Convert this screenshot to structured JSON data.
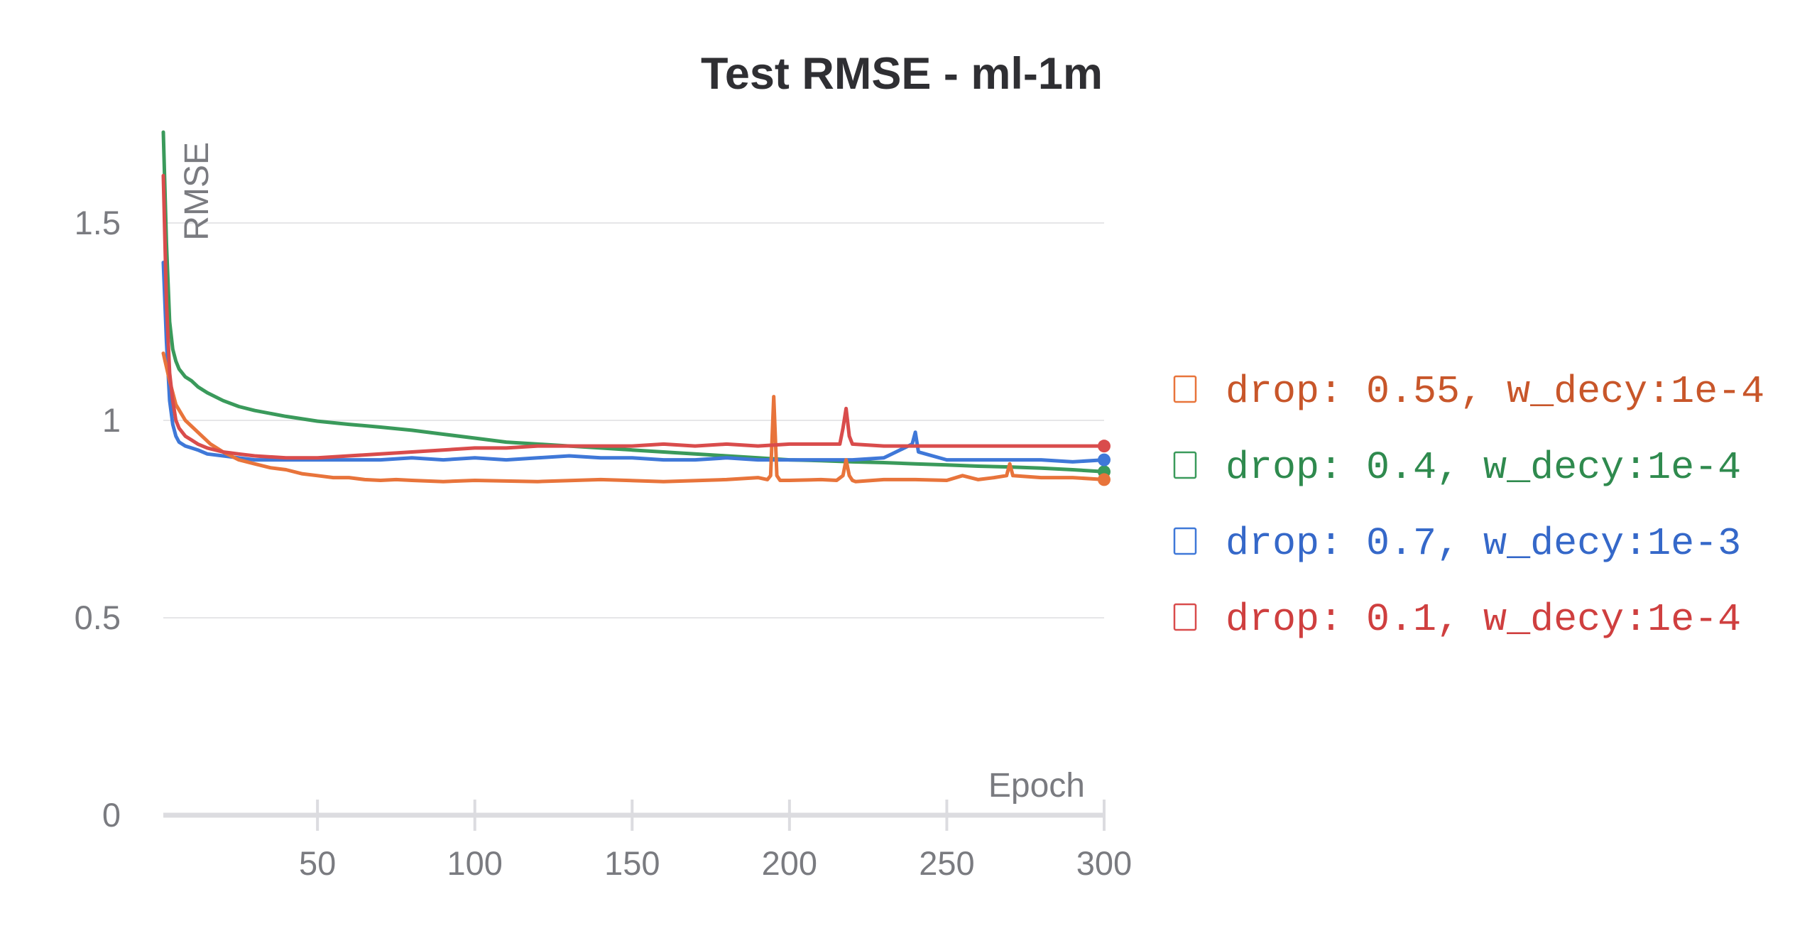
{
  "chart_data": {
    "type": "line",
    "title": "Test RMSE - ml-1m",
    "xlabel": "Epoch",
    "ylabel": "RMSE",
    "xlim": [
      1,
      300
    ],
    "ylim": [
      0,
      1.75
    ],
    "xticks": [
      50,
      100,
      150,
      200,
      250,
      300
    ],
    "yticks": [
      0,
      0.5,
      1,
      1.5
    ],
    "ytick_labels": [
      "0",
      "0.5",
      "1",
      "1.5"
    ],
    "grid": true,
    "legend": "right",
    "series": [
      {
        "name": "drop: 0.55, w_decy:1e-4",
        "color": "#e8743b",
        "text_color": "#c8562a",
        "x": [
          1,
          3,
          5,
          8,
          12,
          16,
          20,
          25,
          30,
          35,
          40,
          45,
          50,
          55,
          60,
          65,
          70,
          75,
          80,
          90,
          100,
          120,
          140,
          160,
          180,
          190,
          193,
          194,
          195,
          196,
          197,
          200,
          210,
          215,
          217,
          218,
          219,
          220,
          221,
          230,
          240,
          250,
          255,
          260,
          265,
          269,
          270,
          271,
          280,
          290,
          300
        ],
        "values": [
          1.17,
          1.1,
          1.04,
          1.0,
          0.97,
          0.94,
          0.92,
          0.9,
          0.89,
          0.88,
          0.875,
          0.865,
          0.86,
          0.855,
          0.855,
          0.85,
          0.848,
          0.85,
          0.848,
          0.845,
          0.848,
          0.845,
          0.85,
          0.845,
          0.85,
          0.855,
          0.85,
          0.86,
          1.06,
          0.86,
          0.848,
          0.848,
          0.85,
          0.848,
          0.86,
          0.9,
          0.86,
          0.848,
          0.845,
          0.85,
          0.85,
          0.848,
          0.86,
          0.85,
          0.855,
          0.86,
          0.89,
          0.86,
          0.855,
          0.855,
          0.85
        ]
      },
      {
        "name": "drop: 0.4, w_decy:1e-4",
        "color": "#3a9a5b",
        "text_color": "#2f8a4e",
        "x": [
          1,
          2,
          3,
          4,
          5,
          6,
          8,
          10,
          12,
          15,
          20,
          25,
          30,
          40,
          50,
          60,
          70,
          80,
          90,
          100,
          110,
          120,
          130,
          140,
          150,
          160,
          170,
          180,
          190,
          200,
          210,
          220,
          230,
          240,
          250,
          260,
          270,
          280,
          290,
          300
        ],
        "values": [
          1.73,
          1.45,
          1.25,
          1.18,
          1.15,
          1.13,
          1.11,
          1.1,
          1.085,
          1.07,
          1.05,
          1.035,
          1.025,
          1.01,
          0.998,
          0.99,
          0.983,
          0.975,
          0.965,
          0.955,
          0.945,
          0.94,
          0.935,
          0.93,
          0.925,
          0.92,
          0.915,
          0.91,
          0.905,
          0.9,
          0.898,
          0.895,
          0.893,
          0.89,
          0.887,
          0.884,
          0.882,
          0.879,
          0.875,
          0.87
        ]
      },
      {
        "name": "drop: 0.7, w_decy:1e-3",
        "color": "#3f78d8",
        "text_color": "#3568c9",
        "x": [
          1,
          2,
          3,
          4,
          5,
          6,
          8,
          10,
          12,
          15,
          20,
          25,
          30,
          40,
          50,
          60,
          70,
          80,
          90,
          100,
          110,
          120,
          130,
          140,
          150,
          160,
          170,
          180,
          190,
          200,
          210,
          220,
          230,
          239,
          240,
          241,
          250,
          260,
          270,
          280,
          290,
          300
        ],
        "values": [
          1.4,
          1.2,
          1.05,
          0.99,
          0.96,
          0.945,
          0.935,
          0.93,
          0.925,
          0.915,
          0.91,
          0.905,
          0.9,
          0.9,
          0.9,
          0.9,
          0.9,
          0.905,
          0.9,
          0.905,
          0.9,
          0.905,
          0.91,
          0.905,
          0.905,
          0.9,
          0.9,
          0.905,
          0.9,
          0.9,
          0.9,
          0.9,
          0.905,
          0.94,
          0.97,
          0.92,
          0.9,
          0.9,
          0.9,
          0.9,
          0.895,
          0.9
        ]
      },
      {
        "name": "drop: 0.1, w_decy:1e-4",
        "color": "#d94c4c",
        "text_color": "#cf3f3f",
        "x": [
          1,
          2,
          3,
          4,
          5,
          6,
          8,
          10,
          12,
          15,
          20,
          25,
          30,
          40,
          50,
          60,
          70,
          80,
          90,
          100,
          110,
          120,
          130,
          140,
          150,
          160,
          170,
          180,
          190,
          200,
          210,
          216,
          217,
          218,
          219,
          220,
          230,
          240,
          250,
          260,
          270,
          280,
          290,
          300
        ],
        "values": [
          1.62,
          1.3,
          1.12,
          1.05,
          1.0,
          0.98,
          0.96,
          0.95,
          0.94,
          0.93,
          0.92,
          0.915,
          0.91,
          0.905,
          0.905,
          0.91,
          0.915,
          0.92,
          0.925,
          0.93,
          0.93,
          0.935,
          0.935,
          0.935,
          0.935,
          0.94,
          0.935,
          0.94,
          0.935,
          0.94,
          0.94,
          0.94,
          0.98,
          1.03,
          0.96,
          0.94,
          0.935,
          0.935,
          0.935,
          0.935,
          0.935,
          0.935,
          0.935,
          0.935
        ]
      }
    ]
  }
}
